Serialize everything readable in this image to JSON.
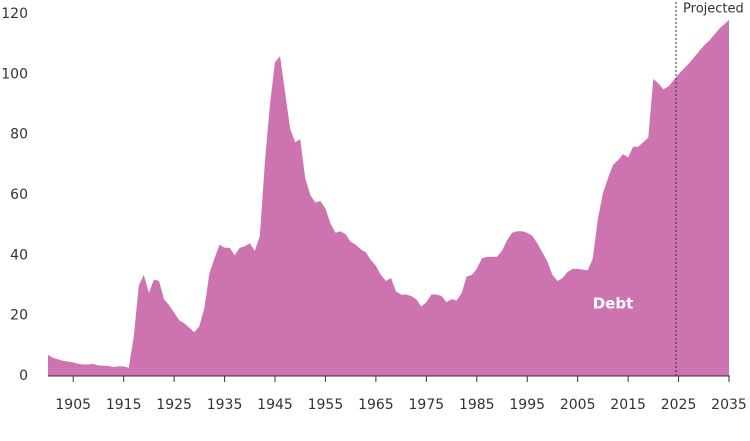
{
  "chart_data": {
    "type": "area",
    "x": [
      1900,
      1901,
      1902,
      1903,
      1904,
      1905,
      1906,
      1907,
      1908,
      1909,
      1910,
      1911,
      1912,
      1913,
      1914,
      1915,
      1916,
      1917,
      1918,
      1919,
      1920,
      1921,
      1922,
      1923,
      1924,
      1925,
      1926,
      1927,
      1928,
      1929,
      1930,
      1931,
      1932,
      1933,
      1934,
      1935,
      1936,
      1937,
      1938,
      1939,
      1940,
      1941,
      1942,
      1943,
      1944,
      1945,
      1946,
      1947,
      1948,
      1949,
      1950,
      1951,
      1952,
      1953,
      1954,
      1955,
      1956,
      1957,
      1958,
      1959,
      1960,
      1961,
      1962,
      1963,
      1964,
      1965,
      1966,
      1967,
      1968,
      1969,
      1970,
      1971,
      1972,
      1973,
      1974,
      1975,
      1976,
      1977,
      1978,
      1979,
      1980,
      1981,
      1982,
      1983,
      1984,
      1985,
      1986,
      1987,
      1988,
      1989,
      1990,
      1991,
      1992,
      1993,
      1994,
      1995,
      1996,
      1997,
      1998,
      1999,
      2000,
      2001,
      2002,
      2003,
      2004,
      2005,
      2006,
      2007,
      2008,
      2009,
      2010,
      2011,
      2012,
      2013,
      2014,
      2015,
      2016,
      2017,
      2018,
      2019,
      2020,
      2021,
      2022,
      2023,
      2024,
      2025,
      2026,
      2027,
      2028,
      2029,
      2030,
      2031,
      2032,
      2033,
      2034,
      2035
    ],
    "series": [
      {
        "name": "Debt",
        "color": "#cd73b0",
        "values": [
          7,
          6,
          5.5,
          5,
          4.8,
          4.5,
          4,
          3.8,
          3.8,
          4,
          3.5,
          3.4,
          3.3,
          3,
          3.2,
          3.2,
          2.7,
          13,
          30,
          33.5,
          27.5,
          32,
          31.5,
          25.5,
          23.5,
          21,
          18.5,
          17.5,
          16,
          14.5,
          16.5,
          22.5,
          34,
          39,
          43.5,
          42.5,
          42.5,
          40,
          42.5,
          43,
          44,
          41.5,
          46.5,
          71,
          90,
          104,
          106,
          94,
          82,
          77.5,
          78.5,
          65.5,
          60,
          57.5,
          58,
          55.5,
          50.5,
          47.5,
          48,
          47,
          44.5,
          43.5,
          42,
          41,
          38.5,
          36.5,
          33.5,
          31.5,
          32.5,
          28,
          27,
          27,
          26.5,
          25.5,
          23,
          24.5,
          27,
          27,
          26.5,
          24.5,
          25.5,
          25,
          27.5,
          33,
          33.5,
          35.5,
          39,
          39.5,
          39.5,
          39.5,
          41.5,
          45,
          47.5,
          48,
          48,
          47.5,
          46.5,
          44,
          41,
          38,
          33.5,
          31.5,
          32.5,
          34.5,
          35.5,
          35.5,
          35.3,
          35,
          39,
          52,
          60.5,
          65.5,
          70,
          71.5,
          73.5,
          72.5,
          76,
          76,
          77.5,
          79,
          98.5,
          97,
          95,
          96,
          98,
          100,
          101.8,
          103.5,
          105.5,
          107.5,
          109.5,
          111,
          113,
          115,
          116.5,
          118
        ]
      }
    ],
    "xlim": [
      1900,
      2035
    ],
    "xticks": [
      1905,
      1915,
      1925,
      1935,
      1945,
      1955,
      1965,
      1975,
      1985,
      1995,
      2005,
      2015,
      2025,
      2035
    ],
    "ylim": [
      0,
      120
    ],
    "yticks": [
      0,
      20,
      40,
      60,
      80,
      100,
      120
    ],
    "annotations": [
      {
        "text": "Projected",
        "x": 2024.5
      }
    ]
  }
}
